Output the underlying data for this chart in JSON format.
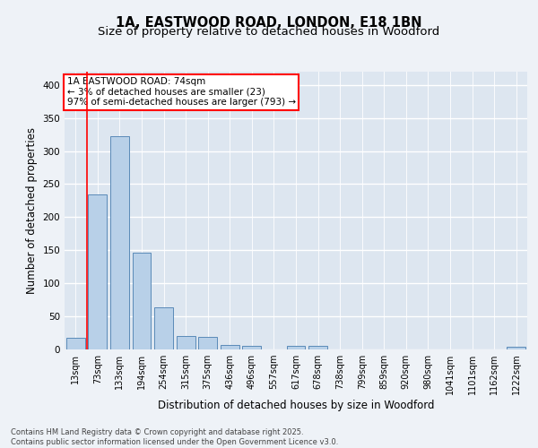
{
  "title_line1": "1A, EASTWOOD ROAD, LONDON, E18 1BN",
  "title_line2": "Size of property relative to detached houses in Woodford",
  "xlabel": "Distribution of detached houses by size in Woodford",
  "ylabel": "Number of detached properties",
  "categories": [
    "13sqm",
    "73sqm",
    "133sqm",
    "194sqm",
    "254sqm",
    "315sqm",
    "375sqm",
    "436sqm",
    "496sqm",
    "557sqm",
    "617sqm",
    "678sqm",
    "738sqm",
    "799sqm",
    "859sqm",
    "920sqm",
    "980sqm",
    "1041sqm",
    "1101sqm",
    "1162sqm",
    "1222sqm"
  ],
  "values": [
    18,
    234,
    323,
    146,
    64,
    20,
    19,
    7,
    5,
    0,
    5,
    5,
    0,
    0,
    0,
    0,
    0,
    0,
    0,
    0,
    4
  ],
  "bar_color": "#b8d0e8",
  "bar_edge_color": "#5a8ab8",
  "ylim": [
    0,
    420
  ],
  "yticks": [
    0,
    50,
    100,
    150,
    200,
    250,
    300,
    350,
    400
  ],
  "annotation_title": "1A EASTWOOD ROAD: 74sqm",
  "annotation_line2": "← 3% of detached houses are smaller (23)",
  "annotation_line3": "97% of semi-detached houses are larger (793) →",
  "footer_line1": "Contains HM Land Registry data © Crown copyright and database right 2025.",
  "footer_line2": "Contains public sector information licensed under the Open Government Licence v3.0.",
  "bg_color": "#eef2f7",
  "plot_bg_color": "#dde6f0",
  "grid_color": "#ffffff",
  "title_fontsize": 10.5,
  "subtitle_fontsize": 9.5,
  "tick_fontsize": 7,
  "label_fontsize": 8.5,
  "annot_fontsize": 7.5,
  "footer_fontsize": 6
}
